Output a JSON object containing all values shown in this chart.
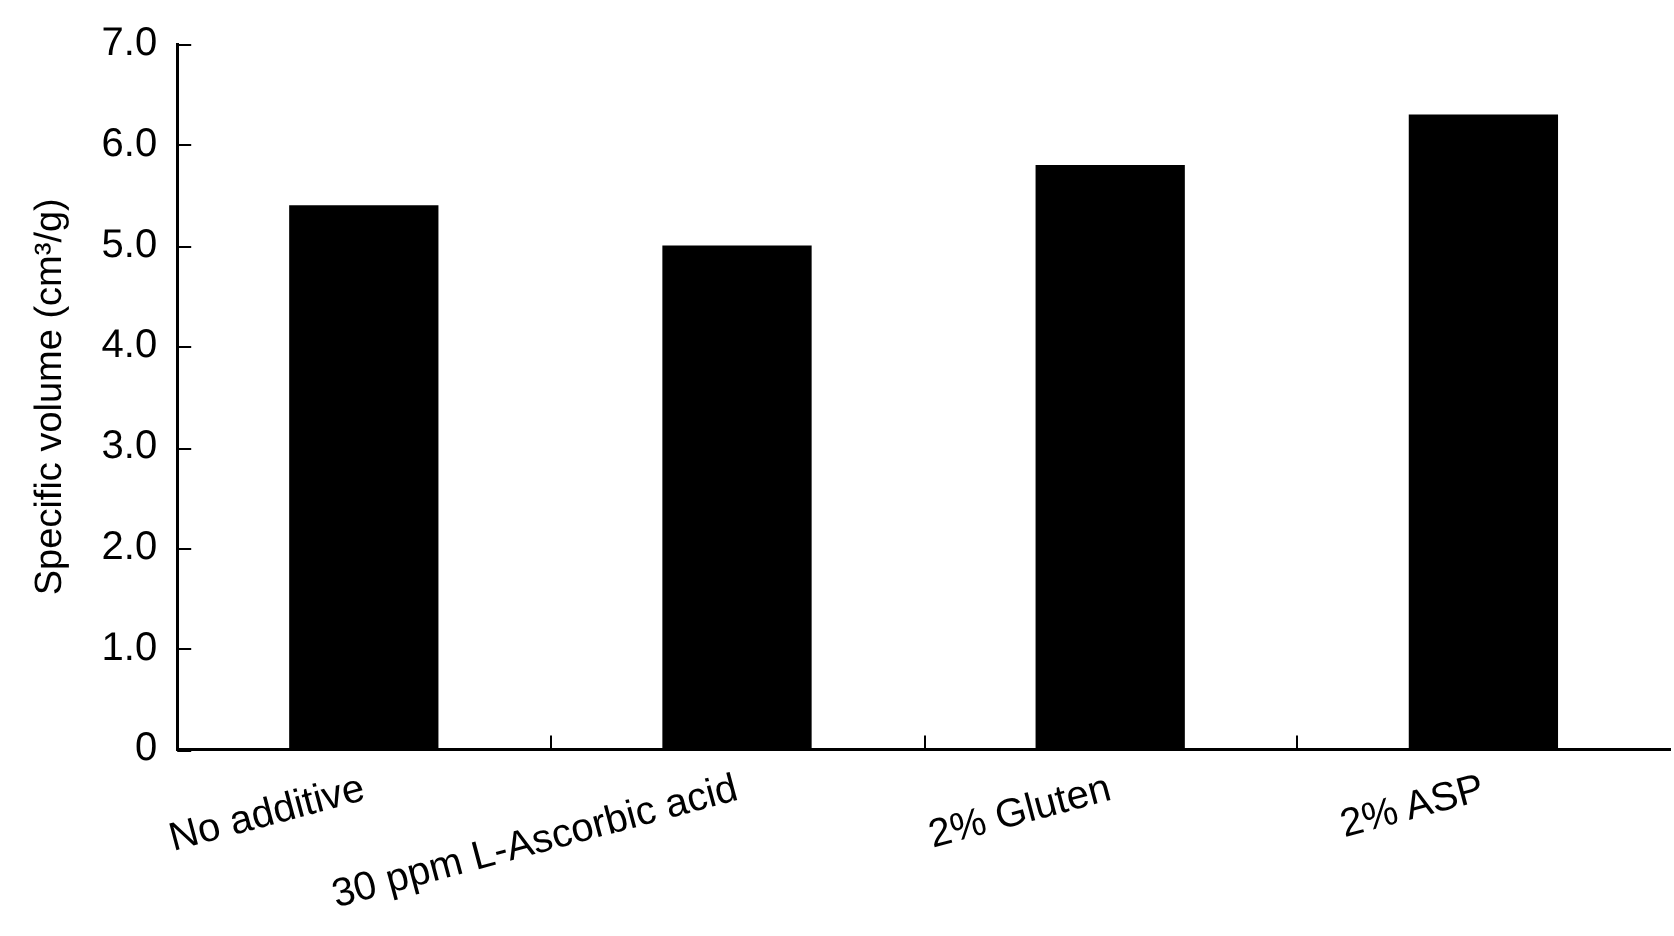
{
  "chart_data": {
    "type": "bar",
    "ylabel": "Specific volume (cm³/g)",
    "categories": [
      "No additive",
      "30 ppm L-Ascorbic acid",
      "2% Gluten",
      "2% ASP"
    ],
    "values": [
      5.4,
      5.0,
      5.8,
      6.3
    ],
    "color": "#000000",
    "ylim": [
      0,
      7
    ],
    "yticks": [
      0,
      {
        "value": 1,
        "label": "1.0"
      },
      {
        "value": 2,
        "label": "2.0"
      },
      {
        "value": 3,
        "label": "3.0"
      },
      {
        "value": 4,
        "label": "4.0"
      },
      {
        "value": 5,
        "label": "5.0"
      },
      {
        "value": 6,
        "label": "6.0"
      },
      {
        "value": 7,
        "label": "7.0"
      }
    ]
  }
}
